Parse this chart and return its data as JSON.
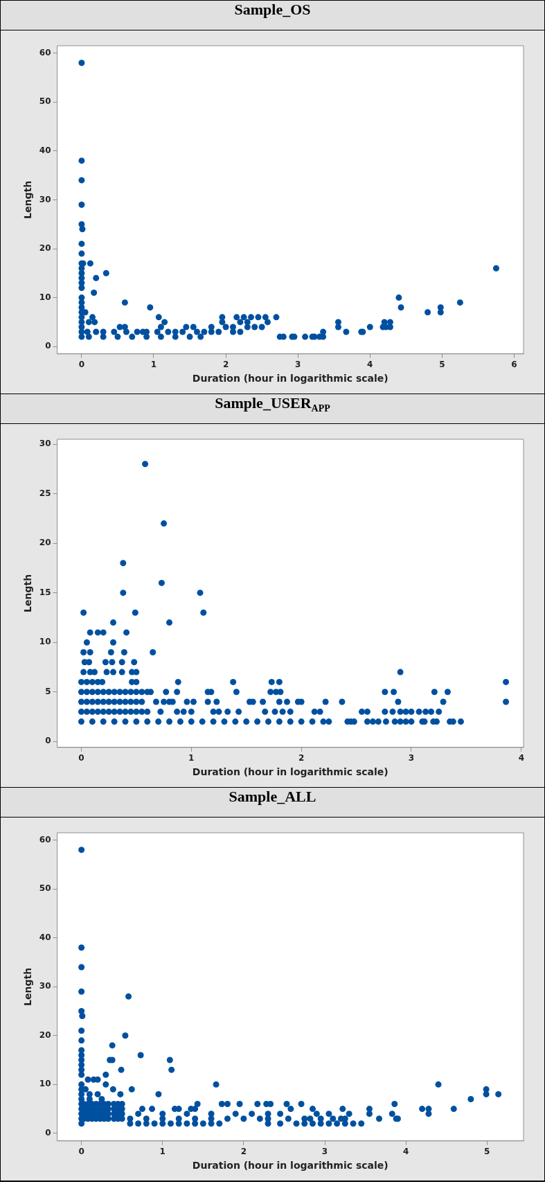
{
  "chart_data": [
    {
      "type": "scatter",
      "title": "Sample_OS",
      "xlabel": "Duration (hour in logarithmic scale)",
      "ylabel": "Length",
      "xlim": [
        -0.34,
        6.13
      ],
      "ylim": [
        -1.5,
        61.5
      ],
      "xticks": [
        0,
        1,
        2,
        3,
        4,
        5,
        6
      ],
      "yticks": [
        0,
        10,
        20,
        30,
        40,
        50,
        60
      ],
      "grid": false,
      "legend": false,
      "marker": "circle",
      "series": [
        {
          "color": "#0050a0",
          "x": [
            0,
            0,
            0,
            0,
            0,
            0.01,
            0,
            0,
            0,
            0,
            0,
            0,
            0,
            0,
            0,
            0,
            0,
            0,
            0,
            0,
            0,
            0,
            0,
            0.02,
            0.12,
            0.2,
            0.34,
            0.17,
            0.6,
            0.95,
            0.05,
            0.15,
            0.18,
            0.1,
            0.08,
            0.2,
            0.3,
            0.45,
            0.53,
            0.6,
            0.62,
            0.77,
            0.85,
            0.9,
            1.07,
            1.15,
            1.1,
            1.05,
            1.2,
            1.3,
            1.45,
            1.55,
            1.4,
            1.6,
            1.8,
            1.95,
            1.95,
            2.0,
            2.15,
            2.2,
            2.25,
            2.35,
            2.45,
            2.55,
            2.58,
            2.5,
            2.7,
            2.3,
            2.4,
            0.1,
            0.3,
            0.5,
            0.7,
            0.9,
            1.1,
            1.3,
            1.5,
            1.65,
            1.7,
            1.8,
            1.9,
            2.1,
            2.2,
            2.1,
            2.3,
            2.75,
            2.8,
            2.92,
            2.95,
            3.1,
            3.2,
            3.23,
            3.3,
            3.35,
            3.35,
            3.56,
            3.56,
            3.67,
            3.88,
            3.9,
            4.0,
            4.18,
            4.2,
            4.22,
            4.28,
            4.28,
            4.4,
            4.43,
            4.8,
            4.98,
            4.98,
            5.25,
            5.75
          ],
          "values": [
            58,
            38,
            34,
            29,
            25,
            24,
            21,
            19,
            17,
            16,
            15,
            14,
            13,
            12,
            10,
            9,
            8,
            7,
            6,
            5,
            4,
            3,
            2,
            17,
            17,
            14,
            15,
            11,
            9,
            8,
            7,
            6,
            5,
            5,
            3,
            3,
            3,
            3,
            4,
            4,
            3,
            3,
            3,
            3,
            6,
            5,
            4,
            3,
            3,
            3,
            4,
            4,
            3,
            3,
            4,
            6,
            5,
            4,
            6,
            5,
            6,
            6,
            6,
            6,
            5,
            4,
            6,
            5,
            4,
            2,
            2,
            2,
            2,
            2,
            2,
            2,
            2,
            2,
            3,
            3,
            3,
            3,
            3,
            4,
            4,
            2,
            2,
            2,
            2,
            2,
            2,
            2,
            2,
            2,
            3,
            5,
            4,
            3,
            3,
            3,
            4,
            4,
            5,
            4,
            5,
            4,
            10,
            8,
            7,
            8,
            7,
            9,
            16
          ]
        }
      ]
    },
    {
      "type": "scatter",
      "title": "Sample_USER$_{APP}$",
      "xlabel": "Duration (hour in logarithmic scale)",
      "ylabel": "Length",
      "xlim": [
        -0.22,
        4.02
      ],
      "ylim": [
        -0.6,
        30.5
      ],
      "xticks": [
        0,
        1,
        2,
        3,
        4
      ],
      "yticks": [
        0,
        5,
        10,
        15,
        20,
        25,
        30
      ],
      "grid": false,
      "legend": false,
      "marker": "circle",
      "series": [
        {
          "color": "#0050a0",
          "x": [
            0.58,
            0.75,
            0.38,
            0.38,
            0.73,
            1.08,
            1.11,
            0.02,
            0.49,
            0.29,
            0.8,
            0.08,
            0.15,
            0.2,
            0.41,
            0.05,
            0.29,
            0.02,
            0.08,
            0.27,
            0.39,
            0.65,
            0.03,
            0.07,
            0.22,
            0.28,
            0.37,
            0.48,
            0.02,
            0.08,
            0.12,
            0.23,
            0.29,
            0.37,
            0.46,
            0.5,
            2.9,
            0,
            0.05,
            0.1,
            0.15,
            0.19,
            0.46,
            0.5,
            0.88,
            1.38,
            1.73,
            1.8,
            3.86,
            0,
            0.05,
            0.1,
            0.15,
            0.2,
            0.25,
            0.3,
            0.35,
            0.4,
            0.45,
            0.5,
            0.55,
            0.6,
            0.63,
            0.77,
            0.87,
            1.15,
            1.18,
            1.41,
            1.72,
            1.77,
            1.81,
            2.76,
            2.84,
            3.21,
            3.33,
            0,
            0.05,
            0.1,
            0.15,
            0.2,
            0.25,
            0.3,
            0.35,
            0.4,
            0.45,
            0.5,
            0.55,
            0.68,
            0.75,
            0.8,
            0.83,
            0.96,
            1.02,
            1.15,
            1.23,
            1.53,
            1.56,
            1.65,
            1.8,
            1.87,
            1.97,
            2.0,
            2.22,
            2.37,
            2.88,
            3.29,
            3.86,
            0,
            0.05,
            0.1,
            0.15,
            0.2,
            0.25,
            0.3,
            0.35,
            0.4,
            0.45,
            0.5,
            0.55,
            0.6,
            0.72,
            0.87,
            0.93,
            1.0,
            1.2,
            1.25,
            1.33,
            1.43,
            1.67,
            1.76,
            1.83,
            1.9,
            2.12,
            2.17,
            2.55,
            2.6,
            2.76,
            2.83,
            2.9,
            2.95,
            3.0,
            3.07,
            3.13,
            3.18,
            3.25,
            0,
            0.1,
            0.2,
            0.3,
            0.4,
            0.5,
            0.6,
            0.7,
            0.8,
            0.9,
            1.0,
            1.1,
            1.2,
            1.3,
            1.4,
            1.5,
            1.6,
            1.7,
            1.8,
            1.9,
            2.0,
            2.1,
            2.2,
            2.25,
            2.42,
            2.45,
            2.48,
            2.6,
            2.65,
            2.7,
            2.77,
            2.85,
            2.9,
            2.95,
            3.0,
            3.1,
            3.12,
            3.2,
            3.23,
            3.35,
            3.38,
            3.45
          ],
          "values": [
            28,
            22,
            18,
            15,
            16,
            15,
            13,
            13,
            13,
            12,
            12,
            11,
            11,
            11,
            11,
            10,
            10,
            9,
            9,
            9,
            9,
            9,
            8,
            8,
            8,
            8,
            8,
            8,
            7,
            7,
            7,
            7,
            7,
            7,
            7,
            7,
            7,
            6,
            6,
            6,
            6,
            6,
            6,
            6,
            6,
            6,
            6,
            6,
            6,
            5,
            5,
            5,
            5,
            5,
            5,
            5,
            5,
            5,
            5,
            5,
            5,
            5,
            5,
            5,
            5,
            5,
            5,
            5,
            5,
            5,
            5,
            5,
            5,
            5,
            5,
            4,
            4,
            4,
            4,
            4,
            4,
            4,
            4,
            4,
            4,
            4,
            4,
            4,
            4,
            4,
            4,
            4,
            4,
            4,
            4,
            4,
            4,
            4,
            4,
            4,
            4,
            4,
            4,
            4,
            4,
            4,
            4,
            3,
            3,
            3,
            3,
            3,
            3,
            3,
            3,
            3,
            3,
            3,
            3,
            3,
            3,
            3,
            3,
            3,
            3,
            3,
            3,
            3,
            3,
            3,
            3,
            3,
            3,
            3,
            3,
            3,
            3,
            3,
            3,
            3,
            3,
            3,
            3,
            3,
            3,
            2,
            2,
            2,
            2,
            2,
            2,
            2,
            2,
            2,
            2,
            2,
            2,
            2,
            2,
            2,
            2,
            2,
            2,
            2,
            2,
            2,
            2,
            2,
            2,
            2,
            2,
            2,
            2,
            2,
            2,
            2,
            2,
            2,
            2,
            2,
            2,
            2,
            2,
            2,
            2,
            2,
            2
          ]
        }
      ]
    },
    {
      "type": "scatter",
      "title": "Sample_ALL",
      "xlabel": "Duration (hour in logarithmic scale)",
      "ylabel": "Length",
      "xlim": [
        -0.3,
        5.45
      ],
      "ylim": [
        -1.55,
        61.5
      ],
      "xticks": [
        0,
        1,
        2,
        3,
        4,
        5
      ],
      "yticks": [
        0,
        10,
        20,
        30,
        40,
        50,
        60
      ],
      "grid": false,
      "legend": false,
      "marker": "circle",
      "series": [
        {
          "color": "#0050a0",
          "x": [
            0,
            0,
            0,
            0,
            0,
            0.01,
            0,
            0,
            0,
            0,
            0,
            0,
            0,
            0,
            0,
            0,
            0,
            0,
            0,
            0,
            0,
            0,
            0,
            0.58,
            0.54,
            0.38,
            0.73,
            0.35,
            0.38,
            1.09,
            0.49,
            1.11,
            0.3,
            0.08,
            0.15,
            0.2,
            0.3,
            1.66,
            4.4,
            0.39,
            0.62,
            0.95,
            0.48,
            4.99,
            4.99,
            5.14,
            4.8,
            0.05,
            0.1,
            0.2,
            0.25,
            0.1,
            0.03,
            0.08,
            0.13,
            0.18,
            0.23,
            0.28,
            0.33,
            0.4,
            0.45,
            0.5,
            0.03,
            0.08,
            0.13,
            0.18,
            0.23,
            0.28,
            0.33,
            0.4,
            0.45,
            0.5,
            0.03,
            0.08,
            0.13,
            0.18,
            0.23,
            0.28,
            0.33,
            0.4,
            0.45,
            0.5,
            0.03,
            0.08,
            0.13,
            0.18,
            0.23,
            0.28,
            0.33,
            0.4,
            0.45,
            0.5,
            0.6,
            0.7,
            0.8,
            0.9,
            1.0,
            1.1,
            1.2,
            1.3,
            1.4,
            1.5,
            1.6,
            1.7,
            0.6,
            0.8,
            1.0,
            1.2,
            1.4,
            1.6,
            1.8,
            2.0,
            2.2,
            2.3,
            0.7,
            1.0,
            1.3,
            1.6,
            1.9,
            2.1,
            2.3,
            2.45,
            0.75,
            0.87,
            1.15,
            1.2,
            1.35,
            1.4,
            1.43,
            1.73,
            1.8,
            1.95,
            2.17,
            2.28,
            2.33,
            2.53,
            2.71,
            3.22,
            2.85,
            2.58,
            3.55,
            3.55,
            3.67,
            3.83,
            3.86,
            3.88,
            3.9,
            4.2,
            4.28,
            4.28,
            4.59,
            2.55,
            2.3,
            2.45,
            2.65,
            2.75,
            2.85,
            2.95,
            3.05,
            3.15,
            3.25,
            3.35,
            3.45,
            3.05,
            3.3,
            2.9,
            2.75,
            2.95,
            3.1,
            3.2,
            3.25,
            2.82
          ],
          "values": [
            58,
            38,
            34,
            29,
            25,
            24,
            21,
            19,
            17,
            16,
            15,
            14,
            13,
            12,
            10,
            9,
            8,
            7,
            6,
            5,
            4,
            3,
            2,
            28,
            20,
            18,
            16,
            15,
            15,
            15,
            13,
            13,
            12,
            11,
            11,
            11,
            10,
            10,
            10,
            9,
            9,
            8,
            8,
            9,
            8,
            8,
            7,
            9,
            8,
            8,
            7,
            7,
            6,
            6,
            6,
            6,
            6,
            6,
            6,
            6,
            6,
            6,
            5,
            5,
            5,
            5,
            5,
            5,
            5,
            5,
            5,
            5,
            4,
            4,
            4,
            4,
            4,
            4,
            4,
            4,
            4,
            4,
            3,
            3,
            3,
            3,
            3,
            3,
            3,
            3,
            3,
            3,
            2,
            2,
            2,
            2,
            2,
            2,
            2,
            2,
            2,
            2,
            2,
            2,
            3,
            3,
            3,
            3,
            3,
            3,
            3,
            3,
            3,
            3,
            4,
            4,
            4,
            4,
            4,
            4,
            4,
            4,
            5,
            5,
            5,
            5,
            5,
            5,
            6,
            6,
            6,
            6,
            6,
            6,
            6,
            6,
            6,
            5,
            5,
            5,
            5,
            4,
            3,
            4,
            6,
            3,
            3,
            5,
            5,
            4,
            5,
            3,
            2,
            2,
            2,
            2,
            2,
            2,
            2,
            2,
            2,
            2,
            2,
            4,
            4,
            4,
            3,
            3,
            3,
            3,
            3,
            3
          ]
        }
      ]
    }
  ]
}
